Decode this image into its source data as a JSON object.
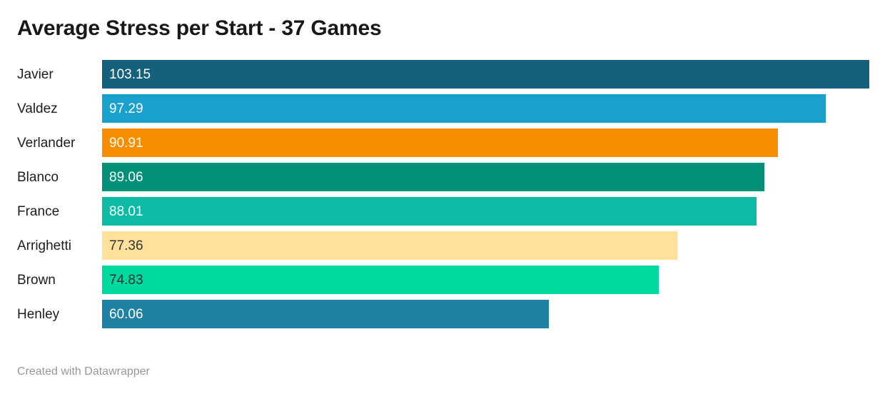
{
  "header": {
    "title": "Average Stress per Start - 37 Games"
  },
  "footer": {
    "text": "Created with Datawrapper"
  },
  "chart_data": {
    "type": "bar",
    "orientation": "horizontal",
    "title": "Average Stress per Start - 37 Games",
    "categories": [
      "Javier",
      "Valdez",
      "Verlander",
      "Blanco",
      "France",
      "Arrighetti",
      "Brown",
      "Henley"
    ],
    "values": [
      103.15,
      97.29,
      90.91,
      89.06,
      88.01,
      77.36,
      74.83,
      60.06
    ],
    "xlabel": "",
    "ylabel": "",
    "xlim": [
      0,
      103.15
    ],
    "grid": false,
    "legend": false,
    "value_labels": "inside-start",
    "bars": [
      {
        "label": "Javier",
        "value": 103.15,
        "value_text": "103.15",
        "color": "#15607a",
        "value_color": "#ffffff"
      },
      {
        "label": "Valdez",
        "value": 97.29,
        "value_text": "97.29",
        "color": "#18a1cd",
        "value_color": "#ffffff"
      },
      {
        "label": "Verlander",
        "value": 90.91,
        "value_text": "90.91",
        "color": "#f98e00",
        "value_color": "#ffffff"
      },
      {
        "label": "Blanco",
        "value": 89.06,
        "value_text": "89.06",
        "color": "#029178",
        "value_color": "#ffffff"
      },
      {
        "label": "France",
        "value": 88.01,
        "value_text": "88.01",
        "color": "#0cbba4",
        "value_color": "#ffffff"
      },
      {
        "label": "Arrighetti",
        "value": 77.36,
        "value_text": "77.36",
        "color": "#ffe199",
        "value_color": "#333333"
      },
      {
        "label": "Brown",
        "value": 74.83,
        "value_text": "74.83",
        "color": "#00d99f",
        "value_color": "#333333"
      },
      {
        "label": "Henley",
        "value": 60.06,
        "value_text": "60.06",
        "color": "#1f81a3",
        "value_color": "#ffffff"
      }
    ]
  }
}
